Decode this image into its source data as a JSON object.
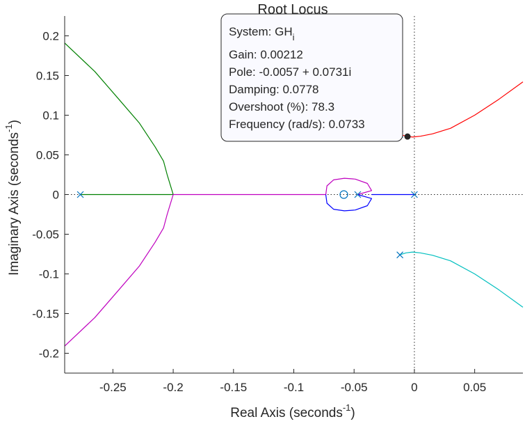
{
  "chart_data": {
    "type": "line",
    "title": "Root Locus",
    "xlabel": {
      "main": "Real Axis (seconds",
      "sup": "-1",
      "close": ")"
    },
    "ylabel": {
      "main": "Imaginary Axis (seconds",
      "sup": "-1",
      "close": ")"
    },
    "xlim": [
      -0.29,
      0.09
    ],
    "ylim": [
      -0.225,
      0.225
    ],
    "xticks": [
      -0.25,
      -0.2,
      -0.15,
      -0.1,
      -0.05,
      0,
      0.05
    ],
    "xtick_labels": [
      "-0.25",
      "-0.2",
      "-0.15",
      "-0.1",
      "-0.05",
      "0",
      "0.05"
    ],
    "yticks": [
      0.2,
      0.15,
      0.1,
      0.05,
      0,
      -0.05,
      -0.1,
      -0.15,
      -0.2
    ],
    "ytick_labels": [
      "0.2",
      "0.15",
      "0.1",
      "0.05",
      "0",
      "-0.05",
      "-0.1",
      "-0.15",
      "-0.2"
    ],
    "grid": false,
    "colors": {
      "axes": "#262626",
      "pole_zero": "#0072bd",
      "guide": "#262626"
    },
    "series": [
      {
        "color": "#008000",
        "points": [
          [
            -0.277,
            0
          ],
          [
            -0.2,
            0
          ]
        ]
      },
      {
        "color": "#008000",
        "points": [
          [
            -0.2,
            0
          ],
          [
            -0.202,
            0.01
          ],
          [
            -0.205,
            0.025
          ],
          [
            -0.208,
            0.042
          ],
          [
            -0.215,
            0.06
          ],
          [
            -0.228,
            0.09
          ],
          [
            -0.245,
            0.12
          ],
          [
            -0.265,
            0.155
          ],
          [
            -0.29,
            0.191
          ]
        ]
      },
      {
        "color": "#bf00bf",
        "points": [
          [
            -0.2,
            0
          ],
          [
            -0.202,
            -0.01
          ],
          [
            -0.205,
            -0.025
          ],
          [
            -0.208,
            -0.042
          ],
          [
            -0.215,
            -0.06
          ],
          [
            -0.228,
            -0.09
          ],
          [
            -0.245,
            -0.12
          ],
          [
            -0.265,
            -0.155
          ],
          [
            -0.29,
            -0.191
          ]
        ]
      },
      {
        "color": "#bf00bf",
        "points": [
          [
            -0.2,
            0
          ],
          [
            -0.0735,
            0
          ]
        ]
      },
      {
        "color": "#bf00bf",
        "points": [
          [
            -0.047,
            0
          ],
          [
            -0.0355,
            0.005
          ],
          [
            -0.039,
            0.014
          ],
          [
            -0.049,
            0.0195
          ],
          [
            -0.058,
            0.0205
          ],
          [
            -0.067,
            0.0185
          ],
          [
            -0.0725,
            0.011
          ],
          [
            -0.0735,
            0
          ]
        ]
      },
      {
        "color": "#0000ff",
        "points": [
          [
            -0.0735,
            0
          ],
          [
            -0.0725,
            -0.011
          ],
          [
            -0.067,
            -0.0185
          ],
          [
            -0.058,
            -0.0205
          ],
          [
            -0.049,
            -0.0195
          ],
          [
            -0.039,
            -0.014
          ],
          [
            -0.0355,
            -0.005
          ],
          [
            -0.047,
            0
          ]
        ]
      },
      {
        "color": "#0000ff",
        "points": [
          [
            -0.0355,
            0
          ],
          [
            0,
            0
          ]
        ]
      },
      {
        "color": "#ff0000",
        "points": [
          [
            -0.012,
            0.076
          ],
          [
            -0.007,
            0.0735
          ],
          [
            -0.0015,
            0.0725
          ],
          [
            0.005,
            0.0735
          ],
          [
            0.015,
            0.0765
          ],
          [
            0.03,
            0.0835
          ],
          [
            0.05,
            0.1
          ],
          [
            0.07,
            0.12
          ],
          [
            0.09,
            0.142
          ]
        ]
      },
      {
        "color": "#00bfbf",
        "points": [
          [
            -0.012,
            -0.076
          ],
          [
            -0.007,
            -0.0735
          ],
          [
            -0.0015,
            -0.0725
          ],
          [
            0.005,
            -0.0735
          ],
          [
            0.015,
            -0.0765
          ],
          [
            0.03,
            -0.0835
          ],
          [
            0.05,
            -0.1
          ],
          [
            0.07,
            -0.12
          ],
          [
            0.09,
            -0.142
          ]
        ]
      }
    ],
    "poles": [
      [
        -0.277,
        0
      ],
      [
        -0.047,
        0
      ],
      [
        0,
        0
      ],
      [
        -0.012,
        0.076
      ],
      [
        -0.012,
        -0.076
      ]
    ],
    "zeros": [
      [
        -0.0585,
        0
      ]
    ],
    "selected_point": [
      -0.0057,
      0.0731
    ],
    "datatip": {
      "system_label": "System: GH",
      "system_sub": "i",
      "lines": [
        "Gain: 0.00212",
        "Pole: -0.0057 + 0.0731i",
        "Damping: 0.0778",
        "Overshoot (%): 78.3",
        "Frequency (rad/s): 0.0733"
      ]
    }
  }
}
